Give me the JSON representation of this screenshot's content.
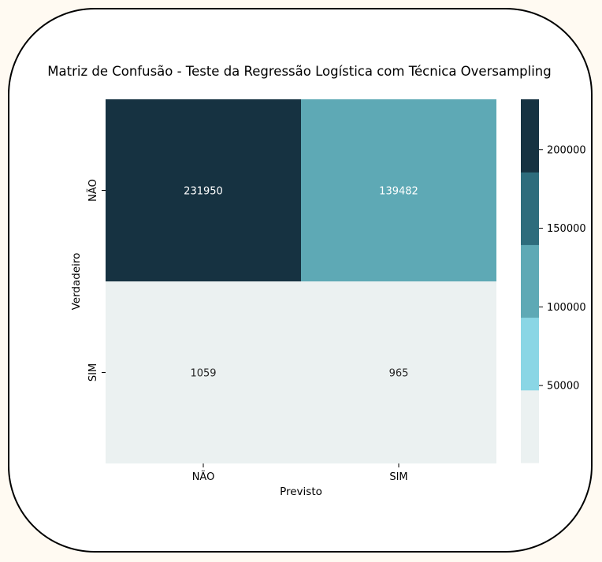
{
  "chart_data": {
    "type": "heatmap",
    "title": "Matriz de Confusão - Teste da Regressão Logística com Técnica Oversampling",
    "xlabel": "Previsto",
    "ylabel": "Verdadeiro",
    "x_categories": [
      "NÃO",
      "SIM"
    ],
    "y_categories": [
      "NÃO",
      "SIM"
    ],
    "matrix": [
      [
        231950,
        139482
      ],
      [
        1059,
        965
      ]
    ],
    "annotations": [
      [
        "231950",
        "139482"
      ],
      [
        "1059",
        "965"
      ]
    ],
    "colorbar": {
      "ticks": [
        50000,
        100000,
        150000,
        200000
      ],
      "tick_labels": [
        "50000",
        "100000",
        "150000",
        "200000"
      ],
      "range": [
        965,
        231950
      ],
      "bins": 5,
      "colors": [
        "#ebf1f1",
        "#8ad6e5",
        "#5ea9b5",
        "#2d6c7c",
        "#163241"
      ]
    },
    "grid": false,
    "legend": "colorbar-right"
  }
}
